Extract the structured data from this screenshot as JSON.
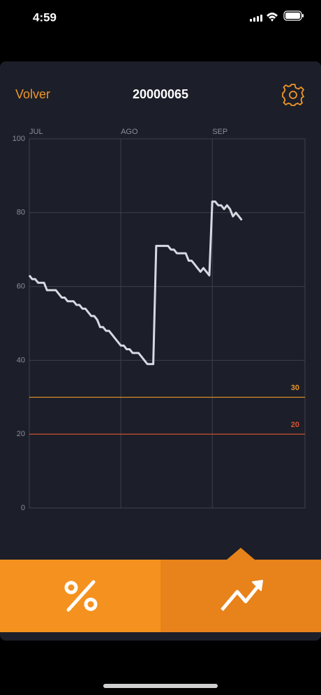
{
  "status_bar": {
    "time": "4:59"
  },
  "header": {
    "back": "Volver",
    "title": "20000065"
  },
  "chart_data": {
    "type": "line",
    "x": [
      0,
      1,
      2,
      3,
      4,
      5,
      6,
      7,
      8,
      9,
      10,
      11,
      12,
      13,
      14,
      15,
      16,
      17,
      18,
      19,
      20,
      21,
      22,
      23,
      24,
      25,
      26,
      27,
      28,
      29,
      30,
      31,
      32,
      33,
      34,
      35,
      36,
      37,
      38,
      39,
      40,
      41,
      42,
      43,
      44,
      45,
      46,
      47,
      48,
      49,
      50,
      51,
      52,
      53,
      54,
      55,
      56,
      57,
      58,
      59,
      60,
      61,
      62,
      63,
      64,
      65,
      66,
      67,
      68,
      69,
      70,
      71,
      72
    ],
    "values": [
      63,
      62,
      62,
      61,
      61,
      61,
      59,
      59,
      59,
      59,
      58,
      57,
      57,
      56,
      56,
      56,
      55,
      55,
      54,
      54,
      53,
      52,
      52,
      51,
      49,
      49,
      48,
      48,
      47,
      46,
      45,
      44,
      44,
      43,
      43,
      42,
      42,
      42,
      41,
      40,
      39,
      39,
      39,
      71,
      71,
      71,
      71,
      71,
      70,
      70,
      69,
      69,
      69,
      69,
      67,
      67,
      66,
      65,
      64,
      65,
      64,
      63,
      83,
      83,
      82,
      82,
      81,
      82,
      81,
      79,
      80,
      79,
      78
    ],
    "color": "#d6d9e0",
    "xlim": [
      0,
      93.4
    ],
    "xticks": [
      {
        "value": 0,
        "label": "JUL"
      },
      {
        "value": 31,
        "label": "AGO"
      },
      {
        "value": 62,
        "label": "SEP"
      }
    ],
    "ylim": [
      0,
      100
    ],
    "yticks": [
      0,
      20,
      40,
      60,
      80,
      100
    ],
    "grid": true,
    "thresholds": [
      {
        "value": 30,
        "color": "#e8952a"
      },
      {
        "value": 20,
        "color": "#d9532c"
      }
    ]
  }
}
